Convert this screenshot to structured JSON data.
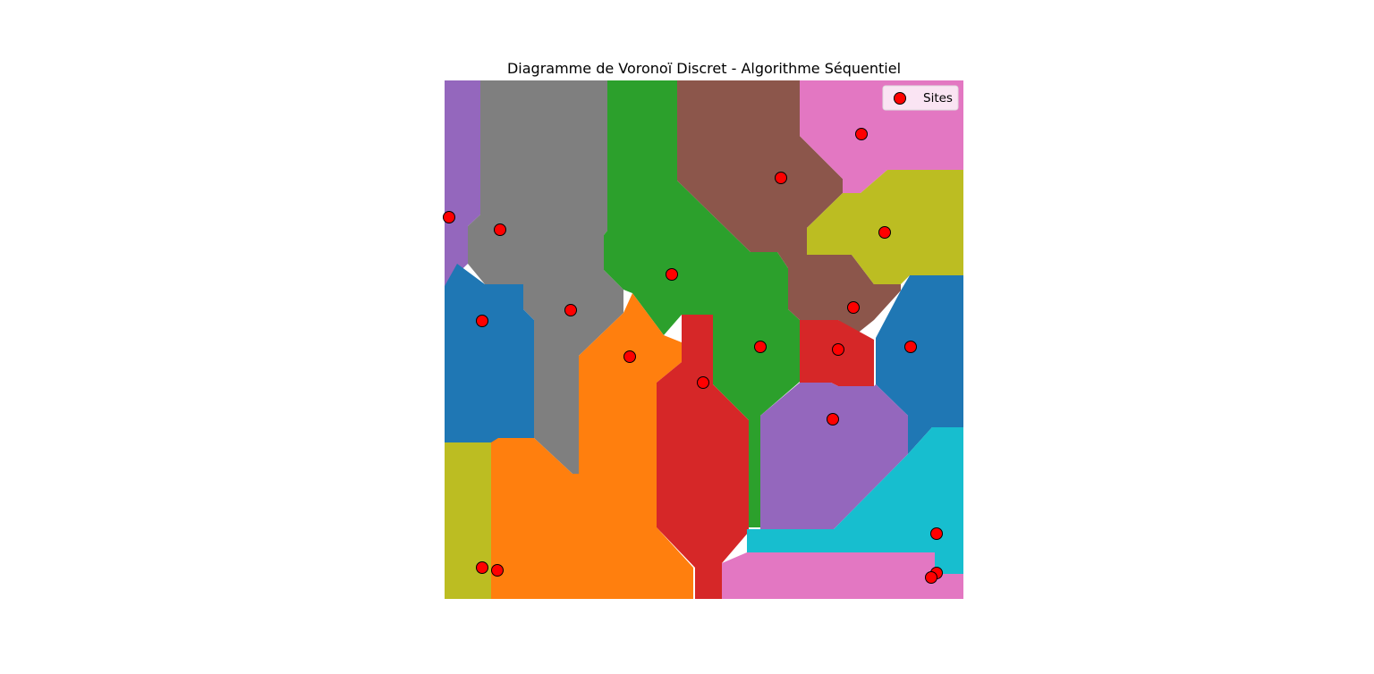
{
  "chart_data": {
    "type": "scatter",
    "title": "Diagramme de Voronoï Discret - Algorithme Séquentiel",
    "xlabel": "",
    "ylabel": "",
    "axes_visible": false,
    "grid": false,
    "xlim": [
      0,
      580
    ],
    "ylim": [
      0,
      580
    ],
    "legend": {
      "position": "top-right",
      "entries": [
        "Sites"
      ]
    },
    "series": [
      {
        "name": "Sites",
        "marker_color": "#ff0000",
        "points": [
          {
            "x": 5,
            "y": 153,
            "region_color": "#9467bd"
          },
          {
            "x": 62,
            "y": 167,
            "region_color": "#7f7f7f"
          },
          {
            "x": 141,
            "y": 257,
            "region_color": "#7f7f7f"
          },
          {
            "x": 42,
            "y": 269,
            "region_color": "#1f77b4"
          },
          {
            "x": 254,
            "y": 217,
            "region_color": "#2ca02c"
          },
          {
            "x": 376,
            "y": 109,
            "region_color": "#8c564b"
          },
          {
            "x": 466,
            "y": 60,
            "region_color": "#e377c2"
          },
          {
            "x": 492,
            "y": 170,
            "region_color": "#bcbd22"
          },
          {
            "x": 457,
            "y": 254,
            "region_color": "#8c564b"
          },
          {
            "x": 353,
            "y": 298,
            "region_color": "#2ca02c"
          },
          {
            "x": 440,
            "y": 301,
            "region_color": "#d62728"
          },
          {
            "x": 521,
            "y": 298,
            "region_color": "#1f77b4"
          },
          {
            "x": 207,
            "y": 309,
            "region_color": "#ff7f0e"
          },
          {
            "x": 289,
            "y": 338,
            "region_color": "#d62728"
          },
          {
            "x": 434,
            "y": 379,
            "region_color": "#9467bd"
          },
          {
            "x": 550,
            "y": 507,
            "region_color": "#17becf"
          },
          {
            "x": 550,
            "y": 551,
            "region_color": "#e377c2"
          },
          {
            "x": 544,
            "y": 556,
            "region_color": "#e377c2"
          },
          {
            "x": 42,
            "y": 545,
            "region_color": "#bcbd22"
          },
          {
            "x": 59,
            "y": 548,
            "region_color": "#ff7f0e"
          }
        ]
      }
    ]
  }
}
